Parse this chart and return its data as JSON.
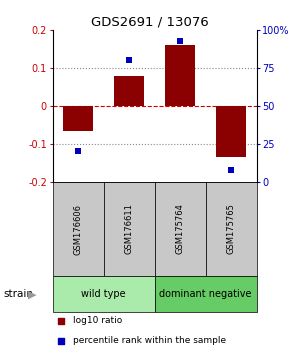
{
  "title": "GDS2691 / 13076",
  "samples": [
    "GSM176606",
    "GSM176611",
    "GSM175764",
    "GSM175765"
  ],
  "log10_ratio": [
    -0.065,
    0.08,
    0.16,
    -0.135
  ],
  "percentile_rank": [
    20,
    80,
    93,
    8
  ],
  "ylim_left": [
    -0.2,
    0.2
  ],
  "ylim_right": [
    0,
    100
  ],
  "yticks_left": [
    -0.2,
    -0.1,
    0.0,
    0.1,
    0.2
  ],
  "yticks_right": [
    0,
    25,
    50,
    75,
    100
  ],
  "ytick_labels_right": [
    "0",
    "25",
    "50",
    "75",
    "100%"
  ],
  "groups": [
    {
      "label": "wild type",
      "span": [
        0,
        2
      ],
      "color": "#aaeaaa"
    },
    {
      "label": "dominant negative",
      "span": [
        2,
        4
      ],
      "color": "#66cc66"
    }
  ],
  "sample_box_color": "#c8c8c8",
  "bar_color": "#8b0000",
  "dot_color": "#0000bb",
  "zero_line_color": "#cc0000",
  "dotted_line_color": "#888888",
  "strain_label": "strain",
  "legend_bar_label": "log10 ratio",
  "legend_dot_label": "percentile rank within the sample"
}
